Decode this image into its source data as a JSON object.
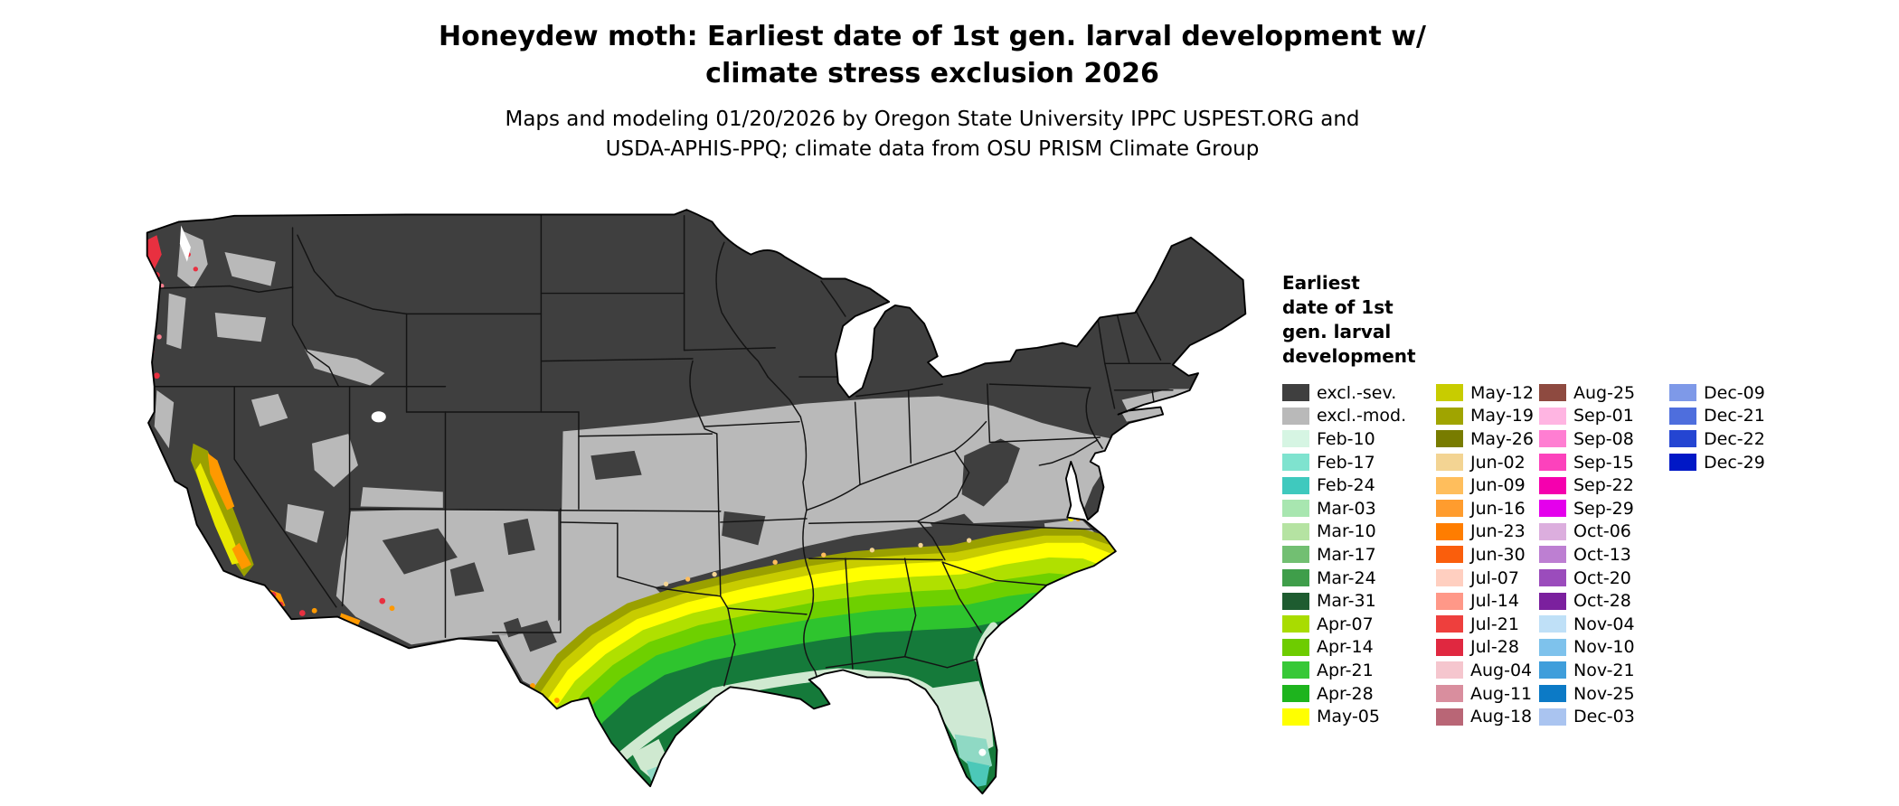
{
  "header": {
    "title_line1": "Honeydew moth: Earliest date of 1st gen. larval development w/",
    "title_line2": "climate stress exclusion 2026",
    "subtitle_line1": "Maps and modeling 01/20/2026 by Oregon State University IPPC USPEST.ORG and",
    "subtitle_line2": "USDA-APHIS-PPQ; climate data from OSU PRISM Climate Group"
  },
  "legend": {
    "title_lines": [
      "Earliest",
      "date of 1st",
      "gen. larval",
      "development"
    ],
    "columns": [
      {
        "entries": [
          {
            "label": "excl.-sev.",
            "color": "#3f3f3f"
          },
          {
            "label": "excl.-mod.",
            "color": "#b9b9b9"
          },
          {
            "label": "Feb-10",
            "color": "#d6f5e3"
          },
          {
            "label": "Feb-17",
            "color": "#7fe3cf"
          },
          {
            "label": "Feb-24",
            "color": "#3fc9be"
          },
          {
            "label": "Mar-03",
            "color": "#a8e6b0"
          },
          {
            "label": "Mar-10",
            "color": "#b5e3a2"
          },
          {
            "label": "Mar-17",
            "color": "#72bf72"
          },
          {
            "label": "Mar-24",
            "color": "#3f9e4a"
          },
          {
            "label": "Mar-31",
            "color": "#1e5c30"
          },
          {
            "label": "Apr-07",
            "color": "#a9dc00"
          },
          {
            "label": "Apr-14",
            "color": "#6ecc00"
          },
          {
            "label": "Apr-21",
            "color": "#37c837"
          },
          {
            "label": "Apr-28",
            "color": "#1eb41e"
          },
          {
            "label": "May-05",
            "color": "#ffff00"
          }
        ]
      },
      {
        "entries": [
          {
            "label": "May-12",
            "color": "#c8cc00"
          },
          {
            "label": "May-19",
            "color": "#a0a400"
          },
          {
            "label": "May-26",
            "color": "#787c00"
          },
          {
            "label": "Jun-02",
            "color": "#f3d493"
          },
          {
            "label": "Jun-09",
            "color": "#ffbe5c"
          },
          {
            "label": "Jun-16",
            "color": "#ff9c2e"
          },
          {
            "label": "Jun-23",
            "color": "#ff7d00"
          },
          {
            "label": "Jun-30",
            "color": "#fa5e0c"
          },
          {
            "label": "Jul-07",
            "color": "#ffcfc0"
          },
          {
            "label": "Jul-14",
            "color": "#ff9888"
          },
          {
            "label": "Jul-21",
            "color": "#ee3f3d"
          },
          {
            "label": "Jul-28",
            "color": "#e02840"
          },
          {
            "label": "Aug-04",
            "color": "#f5c6ce"
          },
          {
            "label": "Aug-11",
            "color": "#d98e9e"
          },
          {
            "label": "Aug-18",
            "color": "#b96676"
          }
        ]
      },
      {
        "entries": [
          {
            "label": "Aug-25",
            "color": "#8e4a40"
          },
          {
            "label": "Sep-01",
            "color": "#ffb5e2"
          },
          {
            "label": "Sep-08",
            "color": "#ff7ed2"
          },
          {
            "label": "Sep-15",
            "color": "#fc42bc"
          },
          {
            "label": "Sep-22",
            "color": "#f500ae"
          },
          {
            "label": "Sep-29",
            "color": "#e400ec"
          },
          {
            "label": "Oct-06",
            "color": "#dcaede"
          },
          {
            "label": "Oct-13",
            "color": "#bd7fd2"
          },
          {
            "label": "Oct-20",
            "color": "#9b4cbc"
          },
          {
            "label": "Oct-28",
            "color": "#7b209e"
          },
          {
            "label": "Nov-04",
            "color": "#bfe0f7"
          },
          {
            "label": "Nov-10",
            "color": "#7ec2ec"
          },
          {
            "label": "Nov-21",
            "color": "#3f9edb"
          },
          {
            "label": "Nov-25",
            "color": "#0c7ac6"
          },
          {
            "label": "Dec-03",
            "color": "#aac4f0"
          }
        ]
      },
      {
        "entries": [
          {
            "label": "Dec-09",
            "color": "#7e99e8"
          },
          {
            "label": "Dec-21",
            "color": "#4e6edd"
          },
          {
            "label": "Dec-22",
            "color": "#2445d2"
          },
          {
            "label": "Dec-29",
            "color": "#0018c6"
          }
        ]
      }
    ]
  },
  "map": {
    "base_color": "#3f3f3f",
    "excluded_moderate_color": "#b9b9b9",
    "background": "#ffffff"
  }
}
